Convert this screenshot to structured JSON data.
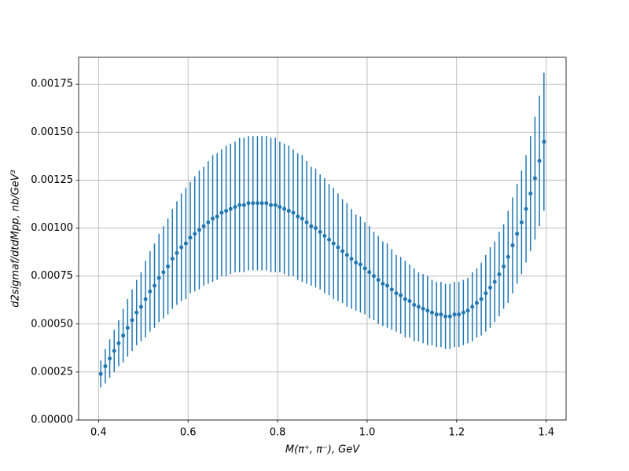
{
  "chart_data": {
    "type": "errorbar",
    "xlabel": "M(π⁺, π⁻), GeV",
    "ylabel": "d2sigmaf/dtdMpp, nb/GeV³",
    "color": "#1f77b4",
    "grid": true,
    "xlim": [
      0.3555,
      1.4445
    ],
    "ylim": [
      0,
      0.00189
    ],
    "xticks": [
      0.4,
      0.6,
      0.8,
      {
        "value": 1,
        "label": "1.0"
      },
      1.2,
      1.4
    ],
    "yticks": [
      {
        "value": 0,
        "label": "0.00000"
      },
      {
        "value": 0.00025,
        "label": "0.00025"
      },
      {
        "value": 0.0005,
        "label": "0.00050"
      },
      {
        "value": 0.00075,
        "label": "0.00075"
      },
      {
        "value": 0.001,
        "label": "0.00100"
      },
      {
        "value": 0.00125,
        "label": "0.00125"
      },
      {
        "value": 0.0015,
        "label": "0.00150"
      },
      {
        "value": 0.00175,
        "label": "0.00175"
      }
    ],
    "x": [
      0.405,
      0.415,
      0.425,
      0.435,
      0.445,
      0.455,
      0.465,
      0.475,
      0.485,
      0.495,
      0.505,
      0.515,
      0.525,
      0.535,
      0.545,
      0.555,
      0.565,
      0.575,
      0.585,
      0.595,
      0.605,
      0.615,
      0.625,
      0.635,
      0.645,
      0.655,
      0.665,
      0.675,
      0.685,
      0.695,
      0.705,
      0.715,
      0.725,
      0.735,
      0.745,
      0.755,
      0.765,
      0.775,
      0.785,
      0.795,
      0.805,
      0.815,
      0.825,
      0.835,
      0.845,
      0.855,
      0.865,
      0.875,
      0.885,
      0.895,
      0.905,
      0.915,
      0.925,
      0.935,
      0.945,
      0.955,
      0.965,
      0.975,
      0.985,
      0.995,
      1.005,
      1.015,
      1.025,
      1.035,
      1.045,
      1.055,
      1.065,
      1.075,
      1.085,
      1.095,
      1.105,
      1.115,
      1.125,
      1.135,
      1.145,
      1.155,
      1.165,
      1.175,
      1.185,
      1.195,
      1.205,
      1.215,
      1.225,
      1.235,
      1.245,
      1.255,
      1.265,
      1.275,
      1.285,
      1.295,
      1.305,
      1.315,
      1.325,
      1.335,
      1.345,
      1.355,
      1.365,
      1.375,
      1.385,
      1.395
    ],
    "values": [
      0.00024,
      0.00028,
      0.00032,
      0.00036,
      0.0004,
      0.00044,
      0.00048,
      0.00052,
      0.00056,
      0.00059,
      0.00063,
      0.00067,
      0.0007,
      0.00074,
      0.00077,
      0.0008,
      0.00084,
      0.00087,
      0.0009,
      0.00092,
      0.00095,
      0.00097,
      0.00099,
      0.00101,
      0.00103,
      0.00105,
      0.00106,
      0.00108,
      0.00109,
      0.0011,
      0.00111,
      0.00112,
      0.00112,
      0.00113,
      0.00113,
      0.00113,
      0.00113,
      0.00113,
      0.00112,
      0.00112,
      0.00111,
      0.0011,
      0.00109,
      0.00108,
      0.00106,
      0.00105,
      0.00103,
      0.00101,
      0.001,
      0.00098,
      0.00096,
      0.00094,
      0.00092,
      0.0009,
      0.00088,
      0.00086,
      0.00084,
      0.00082,
      0.00081,
      0.00079,
      0.00077,
      0.00075,
      0.00073,
      0.00071,
      0.0007,
      0.00068,
      0.00066,
      0.00065,
      0.00063,
      0.00062,
      0.0006,
      0.00059,
      0.00058,
      0.00057,
      0.00056,
      0.00055,
      0.00055,
      0.00054,
      0.00054,
      0.00055,
      0.00055,
      0.00056,
      0.00057,
      0.00059,
      0.00061,
      0.00063,
      0.00066,
      0.00069,
      0.00072,
      0.00076,
      0.0008,
      0.00085,
      0.00091,
      0.00097,
      0.00103,
      0.0011,
      0.00118,
      0.00126,
      0.00135,
      0.00145
    ],
    "errors": [
      7e-05,
      9e-05,
      0.0001,
      0.00011,
      0.00012,
      0.00014,
      0.00015,
      0.00016,
      0.00017,
      0.00018,
      0.0002,
      0.00021,
      0.00022,
      0.00023,
      0.00024,
      0.00025,
      0.00026,
      0.00027,
      0.00028,
      0.00029,
      0.00029,
      0.0003,
      0.00031,
      0.00031,
      0.00032,
      0.00033,
      0.00033,
      0.00033,
      0.00034,
      0.00034,
      0.00034,
      0.00035,
      0.00035,
      0.00035,
      0.00035,
      0.00035,
      0.00035,
      0.00035,
      0.00035,
      0.00035,
      0.00034,
      0.00034,
      0.00034,
      0.00033,
      0.00033,
      0.00033,
      0.00032,
      0.00031,
      0.00031,
      0.0003,
      0.0003,
      0.00029,
      0.00029,
      0.00028,
      0.00027,
      0.00027,
      0.00026,
      0.00025,
      0.00025,
      0.00024,
      0.00024,
      0.00023,
      0.00023,
      0.00022,
      0.00022,
      0.00021,
      0.0002,
      0.0002,
      0.0002,
      0.00019,
      0.00019,
      0.00018,
      0.00018,
      0.00018,
      0.00017,
      0.00017,
      0.00017,
      0.00017,
      0.00017,
      0.00017,
      0.00017,
      0.00017,
      0.00017,
      0.00018,
      0.00018,
      0.00019,
      0.0002,
      0.00021,
      0.00021,
      0.00022,
      0.00022,
      0.00024,
      0.00025,
      0.00026,
      0.00027,
      0.00028,
      0.0003,
      0.00032,
      0.00034,
      0.00036
    ]
  }
}
